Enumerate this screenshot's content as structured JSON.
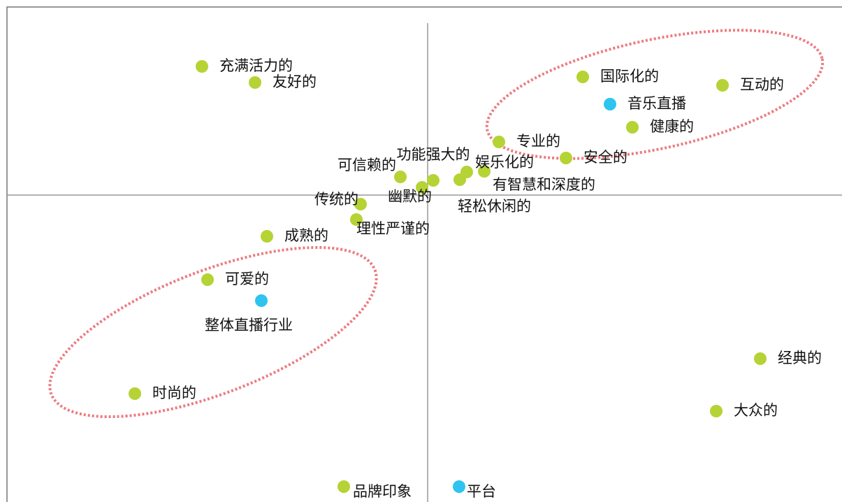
{
  "chart_data": {
    "type": "scatter",
    "xlim": [
      -6.02,
      5.93
    ],
    "ylim": [
      -4.39,
      2.69
    ],
    "series": [
      {
        "color": "#b5d334",
        "labels": [
          "充满活力的",
          "友好的",
          "国际化的",
          "互动的",
          "健康的",
          "专业的",
          "安全的",
          "可信赖的",
          "功能强大的",
          "娱乐化的",
          "有智慧和深度的",
          "轻松休闲的",
          "幽默的",
          "传统的",
          "理性严谨的",
          "成熟的",
          "可爱的",
          "时尚的",
          "经典的",
          "大众的",
          "品牌印象"
        ],
        "x": [
          -3.23,
          -2.47,
          2.22,
          4.22,
          2.93,
          1.02,
          1.98,
          -0.39,
          0.08,
          0.81,
          0.56,
          0.46,
          -0.08,
          -0.96,
          -1.02,
          -2.3,
          -3.15,
          -4.19,
          4.76,
          4.13,
          -1.2
        ],
        "y": [
          1.84,
          1.61,
          1.69,
          1.57,
          0.97,
          0.76,
          0.53,
          0.26,
          0.21,
          0.34,
          0.33,
          0.22,
          0.11,
          -0.13,
          -0.35,
          -0.59,
          -1.21,
          -2.84,
          -2.34,
          -3.09,
          -4.17
        ]
      },
      {
        "color": "#2ec4ef",
        "labels": [
          "音乐直播",
          "整体直播行业",
          "平台"
        ],
        "x": [
          2.61,
          -2.38,
          0.45
        ],
        "y": [
          1.3,
          -1.51,
          -4.17
        ]
      }
    ]
  }
}
